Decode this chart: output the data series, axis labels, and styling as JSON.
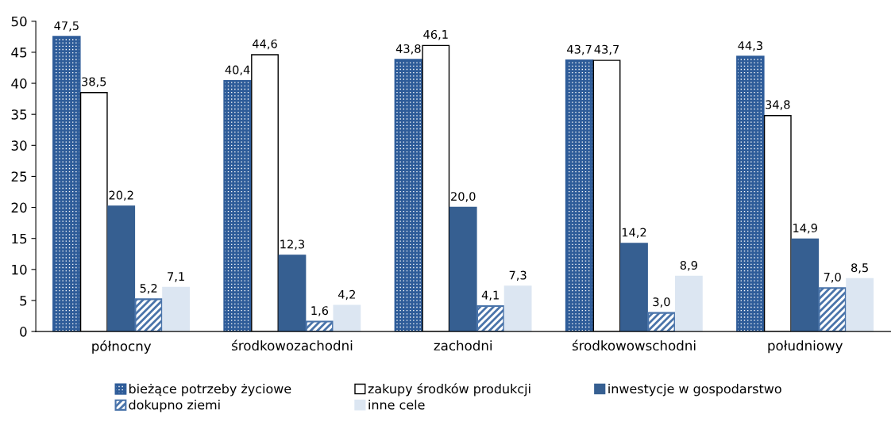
{
  "chart_data": {
    "type": "bar",
    "categories": [
      "północny",
      "środkowozachodni",
      "zachodni",
      "środkowowschodni",
      "południowy"
    ],
    "series": [
      {
        "name": "bieżące potrzeby życiowe",
        "color": "#2e5c99",
        "values": [
          47.5,
          40.4,
          43.8,
          43.7,
          44.3
        ],
        "value_labels": [
          "47,5",
          "40,4",
          "43,8",
          "43,7",
          "44,3"
        ]
      },
      {
        "name": "zakupy środków produkcji",
        "color": "#ffffff",
        "values": [
          38.5,
          44.6,
          46.1,
          43.7,
          34.8
        ],
        "value_labels": [
          "38,5",
          "44,6",
          "46,1",
          "43,7",
          "34,8"
        ]
      },
      {
        "name": "inwestycje w gospodarstwo",
        "color": "#365f91",
        "values": [
          20.2,
          12.3,
          20.0,
          14.2,
          14.9
        ],
        "value_labels": [
          "20,2",
          "12,3",
          "20,0",
          "14,2",
          "14,9"
        ]
      },
      {
        "name": "dokupno ziemi",
        "color": "#4a74aa",
        "values": [
          5.2,
          1.6,
          4.1,
          3.0,
          7.0
        ],
        "value_labels": [
          "5,2",
          "1,6",
          "4,1",
          "3,0",
          "7,0"
        ]
      },
      {
        "name": "inne cele",
        "color": "#dce6f2",
        "values": [
          7.1,
          4.2,
          7.3,
          8.9,
          8.5
        ],
        "value_labels": [
          "7,1",
          "4,2",
          "7,3",
          "8,9",
          "8,5"
        ]
      }
    ],
    "ylim": [
      0,
      50
    ],
    "yticks": [
      0,
      5,
      10,
      15,
      20,
      25,
      30,
      35,
      40,
      45,
      50
    ],
    "grid": false,
    "legend": "bottom"
  }
}
